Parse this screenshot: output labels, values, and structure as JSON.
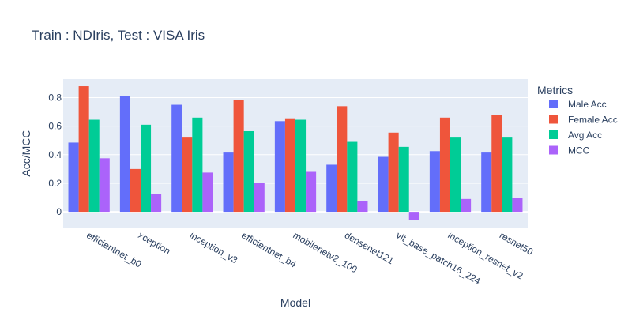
{
  "chart_data": {
    "type": "bar",
    "title": "Train : NDIris, Test : VISA Iris",
    "xlabel": "Model",
    "ylabel": "Acc/MCC",
    "ylim": [
      -0.11,
      0.93
    ],
    "yticks": [
      0,
      0.2,
      0.4,
      0.6,
      0.8
    ],
    "ytick_labels": [
      "0",
      "0.2",
      "0.4",
      "0.6",
      "0.8"
    ],
    "grid": true,
    "legend_title": "Metrics",
    "legend_position": "right",
    "categories": [
      "efficientnet_b0",
      "xception",
      "inception_v3",
      "efficientnet_b4",
      "mobilenetv2_100",
      "densenet121",
      "vit_base_patch16_224",
      "inception_resnet_v2",
      "resnet50"
    ],
    "series": [
      {
        "name": "Male Acc",
        "color": "#636efa",
        "values": [
          0.485,
          0.81,
          0.75,
          0.415,
          0.635,
          0.33,
          0.385,
          0.425,
          0.415
        ]
      },
      {
        "name": "Female Acc",
        "color": "#ef553b",
        "values": [
          0.88,
          0.3,
          0.52,
          0.785,
          0.655,
          0.74,
          0.555,
          0.66,
          0.68
        ]
      },
      {
        "name": "Avg Acc",
        "color": "#00cc96",
        "values": [
          0.645,
          0.61,
          0.66,
          0.565,
          0.645,
          0.49,
          0.455,
          0.52,
          0.52
        ]
      },
      {
        "name": "MCC",
        "color": "#ab63fa",
        "values": [
          0.375,
          0.125,
          0.275,
          0.205,
          0.28,
          0.075,
          -0.055,
          0.09,
          0.095
        ]
      }
    ]
  }
}
